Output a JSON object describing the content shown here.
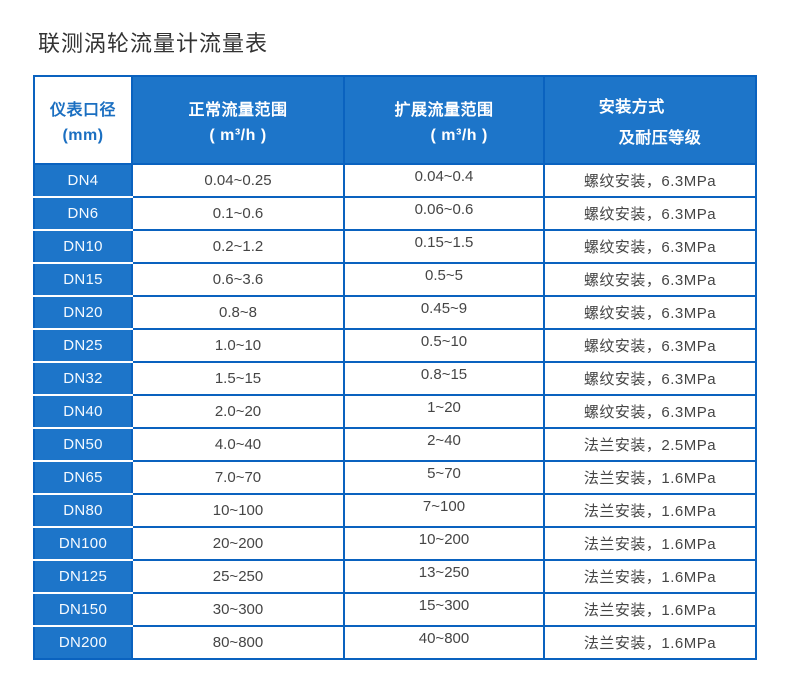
{
  "page": {
    "title": "联测涡轮流量计流量表"
  },
  "colors": {
    "cell_blue": "#1d75c9",
    "border_blue": "#0a62bf",
    "header_text_on_blue": "#ffffff",
    "size_header_text_blue": "#1b6fc1",
    "data_text": "#454545",
    "title_text": "#333333"
  },
  "table": {
    "header": {
      "size_line1": "仪表口径",
      "size_line2": "(mm)",
      "normal_line1": "正常流量范围",
      "normal_line2": "( m³/h )",
      "extended_line1": "扩展流量范围",
      "extended_line2": "( m³/h )",
      "install_line1": "安装方式",
      "install_line2": "及耐压等级"
    },
    "rows": [
      {
        "size": "DN4",
        "normal": "0.04~0.25",
        "extended": "0.04~0.4",
        "install": "螺纹安装，6.3MPa"
      },
      {
        "size": "DN6",
        "normal": "0.1~0.6",
        "extended": "0.06~0.6",
        "install": "螺纹安装，6.3MPa"
      },
      {
        "size": "DN10",
        "normal": "0.2~1.2",
        "extended": "0.15~1.5",
        "install": "螺纹安装，6.3MPa"
      },
      {
        "size": "DN15",
        "normal": "0.6~3.6",
        "extended": "0.5~5",
        "install": "螺纹安装，6.3MPa"
      },
      {
        "size": "DN20",
        "normal": "0.8~8",
        "extended": "0.45~9",
        "install": "螺纹安装，6.3MPa"
      },
      {
        "size": "DN25",
        "normal": "1.0~10",
        "extended": "0.5~10",
        "install": "螺纹安装，6.3MPa"
      },
      {
        "size": "DN32",
        "normal": "1.5~15",
        "extended": "0.8~15",
        "install": "螺纹安装，6.3MPa"
      },
      {
        "size": "DN40",
        "normal": "2.0~20",
        "extended": "1~20",
        "install": "螺纹安装，6.3MPa"
      },
      {
        "size": "DN50",
        "normal": "4.0~40",
        "extended": "2~40",
        "install": "法兰安装，2.5MPa"
      },
      {
        "size": "DN65",
        "normal": "7.0~70",
        "extended": "5~70",
        "install": "法兰安装，1.6MPa"
      },
      {
        "size": "DN80",
        "normal": "10~100",
        "extended": "7~100",
        "install": "法兰安装，1.6MPa"
      },
      {
        "size": "DN100",
        "normal": "20~200",
        "extended": "10~200",
        "install": "法兰安装，1.6MPa"
      },
      {
        "size": "DN125",
        "normal": "25~250",
        "extended": "13~250",
        "install": "法兰安装，1.6MPa"
      },
      {
        "size": "DN150",
        "normal": "30~300",
        "extended": "15~300",
        "install": "法兰安装，1.6MPa"
      },
      {
        "size": "DN200",
        "normal": "80~800",
        "extended": "40~800",
        "install": "法兰安装，1.6MPa"
      }
    ]
  }
}
